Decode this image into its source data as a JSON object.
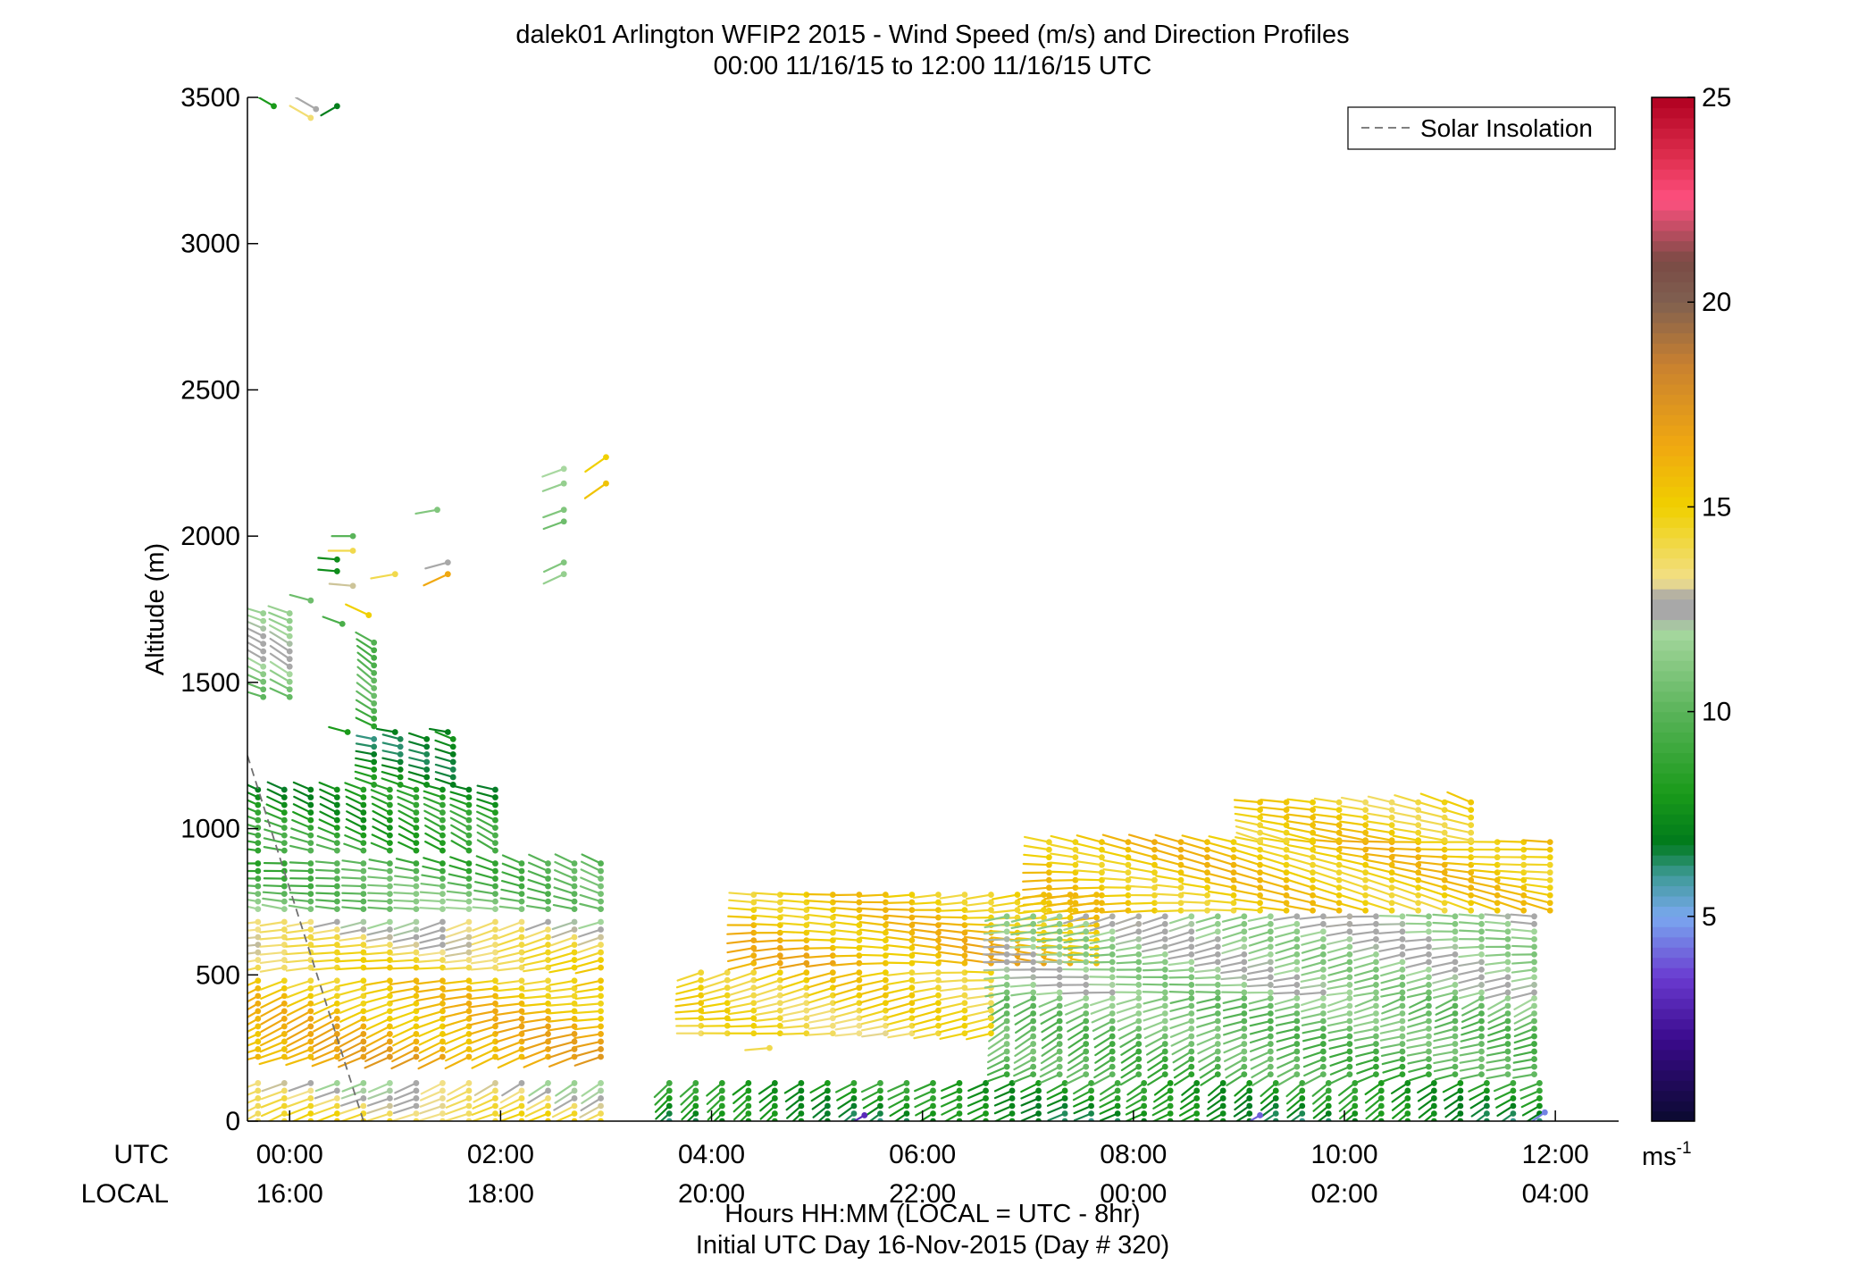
{
  "chart_data": {
    "type": "scatter",
    "subtype": "wind-barb profile",
    "title_line1": "dalek01 Arlington WFIP2 2015 - Wind Speed (m/s) and Direction Profiles",
    "title_line2": "00:00 11/16/15 to 12:00 11/16/15  UTC",
    "ylabel": "Altitude (m)",
    "ylim": [
      0,
      3500
    ],
    "xlim_hours": [
      -0.4,
      12.6
    ],
    "y_ticks": [
      "0",
      "500",
      "1000",
      "1500",
      "2000",
      "2500",
      "3000",
      "3500"
    ],
    "x_tick_hours": [
      0,
      2,
      4,
      6,
      8,
      10,
      12
    ],
    "x_ticks_utc": [
      "00:00",
      "02:00",
      "04:00",
      "06:00",
      "08:00",
      "10:00",
      "12:00"
    ],
    "x_ticks_local": [
      "16:00",
      "18:00",
      "20:00",
      "22:00",
      "00:00",
      "02:00",
      "04:00"
    ],
    "row_label_utc": "UTC",
    "row_label_local": "LOCAL",
    "xlabel_line1": "Hours HH:MM  (LOCAL = UTC - 8hr)",
    "xlabel_line2": "Initial UTC Day 16-Nov-2015 (Day # 320)",
    "legend": {
      "entry": "Solar Insolation",
      "placement": "top-right",
      "style": "dashed gray"
    },
    "solar_insolation": {
      "x": [
        -0.4,
        0.7
      ],
      "y": [
        1250,
        0
      ]
    },
    "colorbar": {
      "range": [
        0,
        25
      ],
      "ticks": [
        "5",
        "10",
        "15",
        "20",
        "25"
      ],
      "unit_base": "ms",
      "unit_exp": "-1",
      "stops": [
        {
          "v": 0,
          "c": "#0a0a2e"
        },
        {
          "v": 2,
          "c": "#3a0a8c"
        },
        {
          "v": 3.5,
          "c": "#6a3ad0"
        },
        {
          "v": 5,
          "c": "#7aa8f0"
        },
        {
          "v": 6,
          "c": "#3f9a98"
        },
        {
          "v": 6.8,
          "c": "#007a1c"
        },
        {
          "v": 8,
          "c": "#1a9a1a"
        },
        {
          "v": 10,
          "c": "#5ab45a"
        },
        {
          "v": 12,
          "c": "#a8d8a0"
        },
        {
          "v": 12.3,
          "c": "#a8a8a8"
        },
        {
          "v": 12.8,
          "c": "#a8a8a8"
        },
        {
          "v": 13.2,
          "c": "#f2e08a"
        },
        {
          "v": 15,
          "c": "#f0d000"
        },
        {
          "v": 16.5,
          "c": "#f0a810"
        },
        {
          "v": 18.5,
          "c": "#c88030"
        },
        {
          "v": 20,
          "c": "#806050"
        },
        {
          "v": 21,
          "c": "#7a4a44"
        },
        {
          "v": 22.5,
          "c": "#ff5080"
        },
        {
          "v": 23.5,
          "c": "#e03050"
        },
        {
          "v": 25,
          "c": "#b00020"
        }
      ]
    },
    "profile_segments": [
      {
        "t0": -0.3,
        "t1": 3.05,
        "z0": 0,
        "z1": 130,
        "s0": 14.5,
        "s1": 12.5,
        "dir": 240
      },
      {
        "t0": -0.3,
        "t1": 3.05,
        "z0": 220,
        "z1": 500,
        "s0": 16.5,
        "s1": 15.0,
        "dir": 250
      },
      {
        "t0": -0.3,
        "t1": 3.05,
        "z0": 525,
        "z1": 700,
        "s0": 14.5,
        "s1": 12.5,
        "dir": 255
      },
      {
        "t0": -0.3,
        "t1": 3.05,
        "z0": 725,
        "z1": 900,
        "s0": 11.0,
        "s1": 9.0,
        "dir": 280
      },
      {
        "t0": -0.3,
        "t1": 2.0,
        "z0": 925,
        "z1": 1150,
        "s0": 9.0,
        "s1": 7.5,
        "dir": 285
      },
      {
        "t0": 0.8,
        "t1": 1.6,
        "z0": 1150,
        "z1": 1325,
        "s0": 7.5,
        "s1": 7.0,
        "dir": 290
      },
      {
        "t0": -0.25,
        "t1": 0.1,
        "z0": 1450,
        "z1": 1750,
        "s0": 11.0,
        "s1": 12.5,
        "dir": 290
      },
      {
        "t0": 0.8,
        "t1": 1.0,
        "z0": 1350,
        "z1": 1650,
        "s0": 9.0,
        "s1": 10.5,
        "dir": 300
      },
      {
        "t0": 3.6,
        "t1": 12.0,
        "z0": 0,
        "z1": 150,
        "s0": 7.0,
        "s1": 8.5,
        "dir": 235
      },
      {
        "t0": 6.8,
        "t1": 12.0,
        "z0": 160,
        "z1": 420,
        "s0": 9.5,
        "s1": 11.0,
        "dir": 245
      },
      {
        "t0": 3.9,
        "t1": 6.8,
        "z0": 300,
        "z1": 520,
        "s0": 14.0,
        "s1": 15.0,
        "dir": 260
      },
      {
        "t0": 4.4,
        "t1": 7.8,
        "z0": 540,
        "z1": 780,
        "s0": 16.0,
        "s1": 15.0,
        "dir": 265
      },
      {
        "t0": 6.8,
        "t1": 12.0,
        "z0": 440,
        "z1": 700,
        "s0": 11.5,
        "s1": 12.0,
        "dir": 260
      },
      {
        "t0": 7.2,
        "t1": 12.0,
        "z0": 720,
        "z1": 960,
        "s0": 15.0,
        "s1": 15.5,
        "dir": 275
      },
      {
        "t0": 9.2,
        "t1": 11.3,
        "z0": 960,
        "z1": 1110,
        "s0": 15.0,
        "s1": 14.5,
        "dir": 285
      }
    ],
    "isolated_barbs": [
      {
        "t": -0.15,
        "z": 3470,
        "s": 8,
        "dir": 300
      },
      {
        "t": 0.25,
        "z": 3460,
        "s": 12.5,
        "dir": 300
      },
      {
        "t": 0.45,
        "z": 3470,
        "s": 7,
        "dir": 240
      },
      {
        "t": 0.2,
        "z": 3430,
        "s": 13.5,
        "dir": 300
      },
      {
        "t": 0.6,
        "z": 2000,
        "s": 10,
        "dir": 270
      },
      {
        "t": 1.4,
        "z": 2090,
        "s": 11,
        "dir": 260
      },
      {
        "t": 2.6,
        "z": 2230,
        "s": 12,
        "dir": 250
      },
      {
        "t": 2.6,
        "z": 2180,
        "s": 11.5,
        "dir": 250
      },
      {
        "t": 2.6,
        "z": 2090,
        "s": 11,
        "dir": 250
      },
      {
        "t": 2.6,
        "z": 2050,
        "s": 10.5,
        "dir": 250
      },
      {
        "t": 2.6,
        "z": 1910,
        "s": 11,
        "dir": 245
      },
      {
        "t": 2.6,
        "z": 1870,
        "s": 11.5,
        "dir": 245
      },
      {
        "t": 3.0,
        "z": 2270,
        "s": 15,
        "dir": 235
      },
      {
        "t": 3.0,
        "z": 2180,
        "s": 15.5,
        "dir": 235
      },
      {
        "t": 1.5,
        "z": 1910,
        "s": 12.5,
        "dir": 255
      },
      {
        "t": 1.5,
        "z": 1870,
        "s": 16.5,
        "dir": 245
      },
      {
        "t": 1.0,
        "z": 1870,
        "s": 14,
        "dir": 260
      },
      {
        "t": 0.6,
        "z": 1950,
        "s": 14,
        "dir": 270
      },
      {
        "t": 0.45,
        "z": 1920,
        "s": 7.5,
        "dir": 275
      },
      {
        "t": 0.45,
        "z": 1880,
        "s": 7.5,
        "dir": 275
      },
      {
        "t": 0.6,
        "z": 1830,
        "s": 13,
        "dir": 275
      },
      {
        "t": 0.2,
        "z": 1780,
        "s": 10.5,
        "dir": 285
      },
      {
        "t": 0.5,
        "z": 1700,
        "s": 9.5,
        "dir": 290
      },
      {
        "t": 0.75,
        "z": 1730,
        "s": 15,
        "dir": 295
      },
      {
        "t": 1.0,
        "z": 1330,
        "s": 7,
        "dir": 280
      },
      {
        "t": 1.5,
        "z": 1330,
        "s": 7,
        "dir": 280
      },
      {
        "t": 0.55,
        "z": 1330,
        "s": 8,
        "dir": 285
      },
      {
        "t": 4.55,
        "z": 250,
        "s": 14,
        "dir": 265
      },
      {
        "t": 5.45,
        "z": 20,
        "s": 3,
        "dir": 240
      },
      {
        "t": 9.2,
        "z": 20,
        "s": 4,
        "dir": 240
      },
      {
        "t": 11.9,
        "z": 30,
        "s": 4.5,
        "dir": 235
      }
    ]
  }
}
